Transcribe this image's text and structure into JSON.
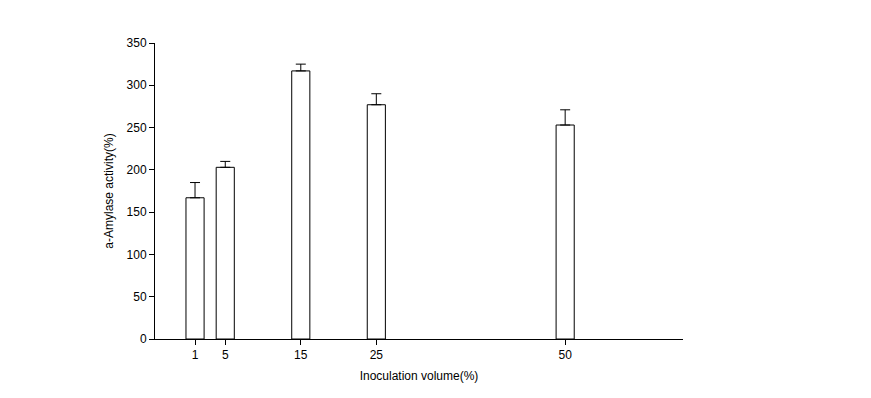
{
  "chart_data": {
    "type": "bar",
    "x": [
      1,
      5,
      15,
      25,
      50
    ],
    "values": [
      167,
      203,
      317,
      277,
      253
    ],
    "errors": [
      18,
      7,
      8,
      13,
      18
    ],
    "color": "#ffffff",
    "xlabel": "Inoculation volume(%)",
    "ylabel": "a-Amylase activity(%)",
    "xlim": [
      -4.3,
      65.6
    ],
    "xticks": [
      1,
      5,
      15,
      25,
      50
    ],
    "ylim": [
      0,
      350
    ],
    "yticks": [
      0,
      50,
      100,
      150,
      200,
      250,
      300,
      350
    ],
    "grid": false
  }
}
